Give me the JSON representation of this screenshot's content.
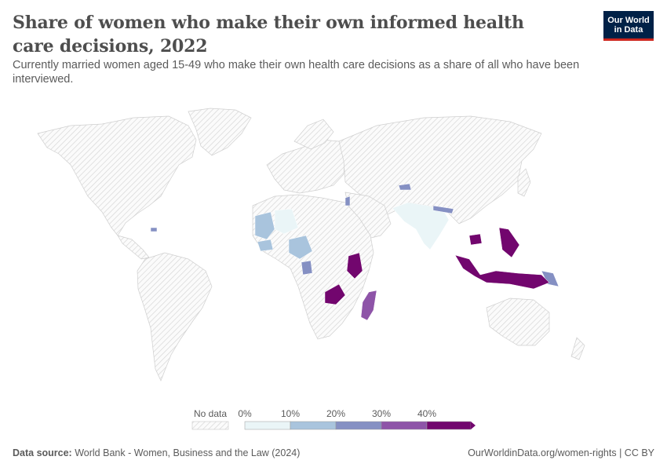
{
  "header": {
    "title": "Share of women who make their own informed health care decisions, 2022",
    "subtitle": "Currently married women aged 15-49 who make their own health care decisions as a share of all who have been interviewed."
  },
  "logo": {
    "line1": "Our World",
    "line2": "in Data"
  },
  "colors": {
    "no_data_stroke": "#d0d0d0",
    "bins": [
      "#eaf5f7",
      "#a9c4dd",
      "#8590c3",
      "#8e54a8",
      "#72066e"
    ],
    "border": "#ffffff"
  },
  "legend": {
    "no_data_label": "No data",
    "tick_labels": [
      "0%",
      "10%",
      "20%",
      "30%",
      "40%"
    ]
  },
  "chart_data": {
    "type": "choropleth",
    "unit": "%",
    "bins": [
      {
        "range": [
          0,
          10
        ]
      },
      {
        "range": [
          10,
          20
        ]
      },
      {
        "range": [
          20,
          30
        ]
      },
      {
        "range": [
          30,
          40
        ]
      },
      {
        "range": [
          40,
          null
        ]
      }
    ]
  },
  "footer": {
    "source_label": "Data source:",
    "source_text": "World Bank - Women, Business and the Law (2024)",
    "url": "OurWorldinData.org/women-rights | CC BY"
  }
}
